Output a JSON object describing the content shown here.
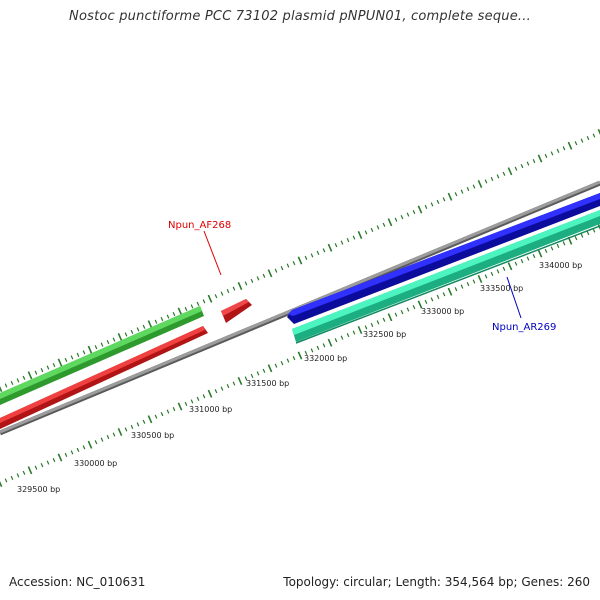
{
  "title": "Nostoc punctiforme PCC 73102 plasmid pNPUN01, complete seque...",
  "footer": {
    "accession": "Accession: NC_010631",
    "summary": "Topology: circular; Length: 354,564 bp; Genes: 260"
  },
  "colors": {
    "backbone": "#8a8a8a",
    "tick": "#2a7a2a",
    "gene_green": "#44c044",
    "gene_red": "#e02020",
    "gene_blue": "#1a1ae0",
    "gene_teal": "#33e8b0",
    "label_red": "#e00000",
    "label_blue": "#0000c0"
  },
  "ticks": [
    "329500 bp",
    "330000 bp",
    "330500 bp",
    "331000 bp",
    "331500 bp",
    "332000 bp",
    "332500 bp",
    "333000 bp",
    "333500 bp",
    "334000 bp"
  ],
  "genes": [
    {
      "label": "Npun_AF268",
      "color": "red"
    },
    {
      "label": "Npun_AR269",
      "color": "blue"
    }
  ]
}
